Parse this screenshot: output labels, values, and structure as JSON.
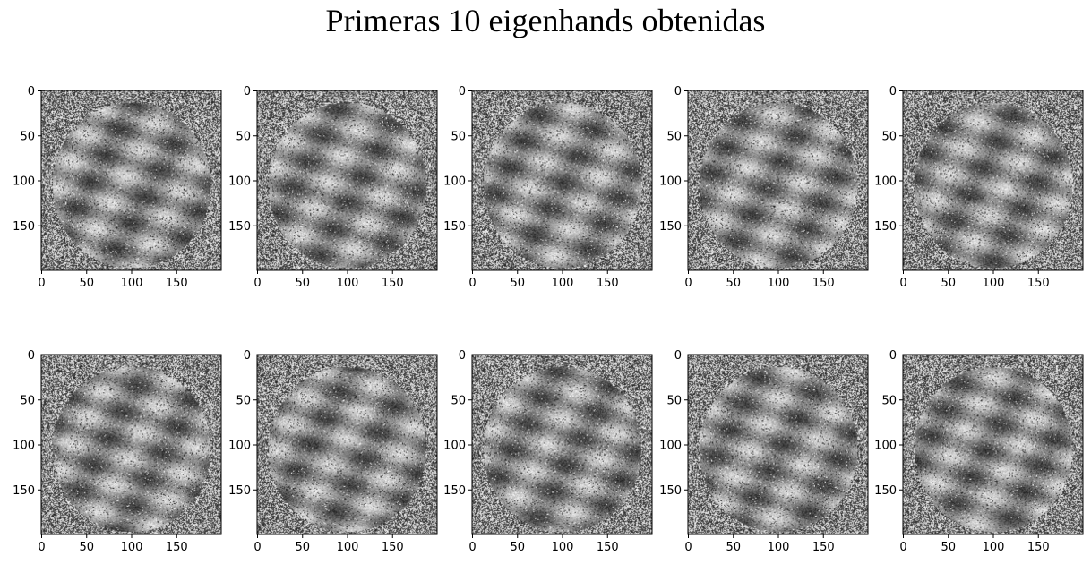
{
  "title": "Primeras 10 eigenhands obtenidas",
  "chart_data": {
    "type": "heatmap",
    "title": "Primeras 10 eigenhands obtenidas",
    "colormap": "gray",
    "layout_grid": "2 rows x 5 columns",
    "image_count": 10,
    "image_shape": [
      200,
      200
    ],
    "x_ticks": [
      0,
      50,
      100,
      150
    ],
    "y_ticks": [
      0,
      50,
      100,
      150
    ],
    "xlim": [
      0,
      200
    ],
    "ylim": [
      200,
      0
    ]
  }
}
